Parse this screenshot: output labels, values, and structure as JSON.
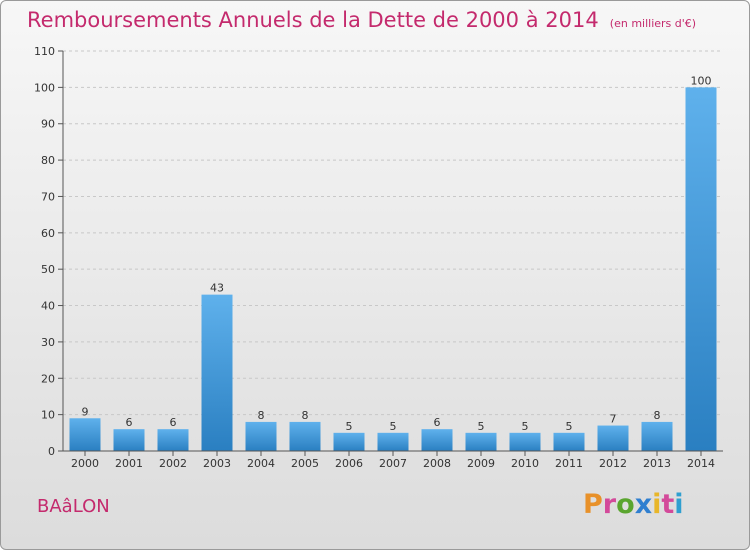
{
  "chart_data": {
    "type": "bar",
    "title": "Remboursements Annuels de la Dette de 2000 à 2014",
    "subtitle": "(en milliers d'€)",
    "categories": [
      "2000",
      "2001",
      "2002",
      "2003",
      "2004",
      "2005",
      "2006",
      "2007",
      "2008",
      "2009",
      "2010",
      "2011",
      "2012",
      "2013",
      "2014"
    ],
    "values": [
      9,
      6,
      6,
      43,
      8,
      8,
      5,
      5,
      6,
      5,
      5,
      5,
      7,
      8,
      100
    ],
    "ylim": [
      0,
      110
    ],
    "yticks": [
      0,
      10,
      20,
      30,
      40,
      50,
      60,
      70,
      80,
      90,
      100,
      110
    ],
    "xlabel": "",
    "ylabel": "",
    "grid": "horizontal-dashed",
    "bar_color": "#3d95d8"
  },
  "footer": {
    "commune": "BAâLON",
    "logo_letters": [
      "P",
      "r",
      "o",
      "x",
      "i",
      "t",
      "i"
    ],
    "logo_colors": [
      "#e8912a",
      "#d34a9a",
      "#5aa52f",
      "#2f7fd0",
      "#e8b62a",
      "#d34a9a",
      "#2f9fd0"
    ]
  }
}
